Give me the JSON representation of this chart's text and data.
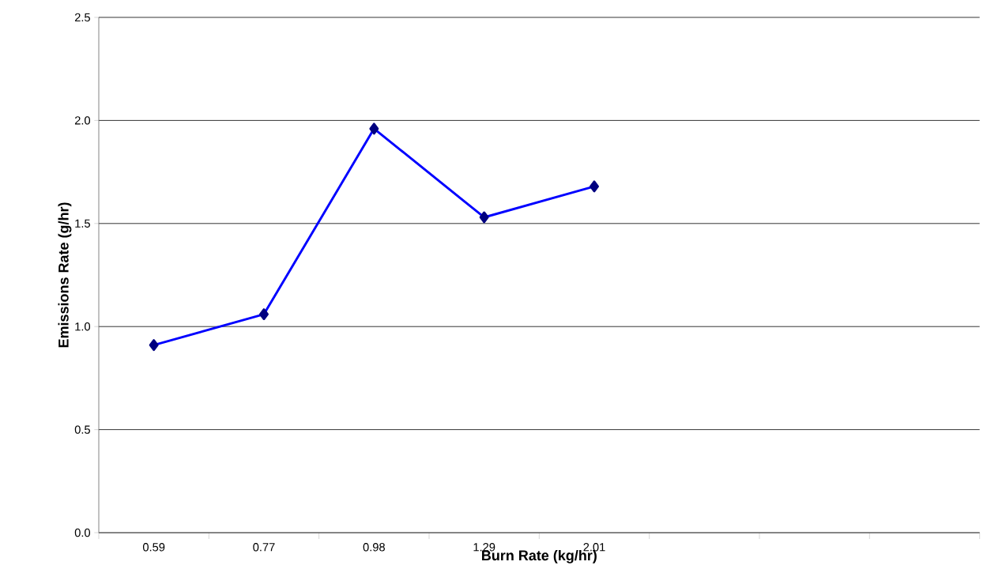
{
  "chart_data": {
    "type": "line",
    "xlabel": "Burn Rate (kg/hr)",
    "ylabel": "Emissions Rate (g/hr)",
    "categories": [
      "0.59",
      "0.77",
      "0.98",
      "1.29",
      "2.01",
      null,
      null,
      null
    ],
    "series": [
      {
        "color": "#0000ff",
        "values": [
          0.91,
          1.06,
          1.96,
          1.53,
          1.68,
          null,
          null,
          null
        ]
      }
    ],
    "ylim": [
      0,
      2.5
    ],
    "yticks": [
      {
        "value": 0,
        "label": "0.0"
      },
      0.5,
      {
        "value": 1,
        "label": "1.0"
      },
      1.5,
      {
        "value": 2,
        "label": "2.0"
      },
      2.5
    ],
    "grid": "y",
    "marker": "diamond",
    "line_style": "solid"
  }
}
